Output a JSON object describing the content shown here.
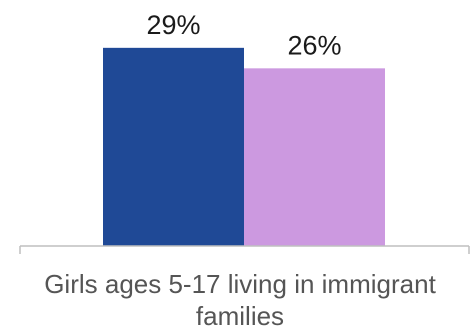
{
  "chart_data": {
    "type": "bar",
    "categories": [
      "Girls ages 5-17 living in immigrant families"
    ],
    "series": [
      {
        "values": [
          29
        ],
        "color": "#1f4996"
      },
      {
        "values": [
          26
        ],
        "color": "#cc99e0"
      }
    ],
    "data_labels": [
      "29%",
      "26%"
    ],
    "value_unit": "%",
    "ylim": [
      0,
      36
    ],
    "grid": false,
    "legend": "none"
  }
}
